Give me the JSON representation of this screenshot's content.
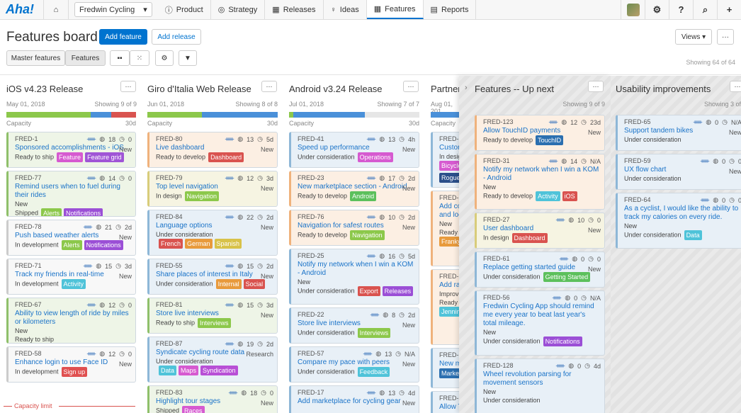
{
  "nav": {
    "logo": "Aha!",
    "workspace": "Fredwin Cycling",
    "tabs": [
      "Product",
      "Strategy",
      "Releases",
      "Ideas",
      "Features",
      "Reports"
    ],
    "active_tab": "Features"
  },
  "header": {
    "title": "Features board",
    "add_feature": "Add feature",
    "add_release": "Add release",
    "views": "Views",
    "filter_left": "Master features",
    "filter_right": "Features",
    "showing": "Showing 64 of 64"
  },
  "columns": [
    {
      "title": "iOS v4.23 Release",
      "date": "May 01, 2018",
      "showing": "Showing 9 of 9",
      "capacity": "Capacity",
      "days": "30d",
      "cards": [
        {
          "id": "FRED-1",
          "score": "18",
          "time": "0",
          "sub": "New",
          "title": "Sponsored accomplishments - iOS",
          "status": "Ready to ship",
          "tags": [
            "Feature",
            "Feature grid"
          ],
          "color": "g"
        },
        {
          "id": "FRED-77",
          "score": "14",
          "time": "0",
          "sub": "",
          "title": "Remind users when to fuel during their rides",
          "status": "New",
          "status2": "Shipped",
          "tags": [
            "Alerts",
            "Notifications"
          ],
          "color": "g"
        },
        {
          "id": "FRED-78",
          "score": "21",
          "time": "2d",
          "sub": "New",
          "title": "Push based weather alerts",
          "status": "In development",
          "tags": [
            "Alerts",
            "Notifications"
          ],
          "color": "w"
        },
        {
          "id": "FRED-71",
          "score": "15",
          "time": "3d",
          "sub": "New",
          "title": "Track my friends in real-time",
          "status": "In development",
          "tags": [
            "Activity"
          ],
          "color": "w"
        },
        {
          "id": "FRED-67",
          "score": "12",
          "time": "0",
          "sub": "",
          "title": "Ability to view length of ride by miles or kilometers",
          "status": "New",
          "status2": "Ready to ship",
          "tags": [
            "Data",
            "Enhanced Metrics"
          ],
          "color": "g"
        },
        {
          "id": "FRED-58",
          "score": "12",
          "time": "0",
          "sub": "New",
          "title": "Enhance login to use Face ID",
          "status": "In development",
          "tags": [
            "Sign up"
          ],
          "color": "w"
        }
      ],
      "limit": "Capacity limit"
    },
    {
      "title": "Giro d'Italia Web Release",
      "date": "Jun 01, 2018",
      "showing": "Showing 8 of 8",
      "capacity": "Capacity",
      "days": "30d",
      "cards": [
        {
          "id": "FRED-80",
          "score": "13",
          "time": "5d",
          "sub": "New",
          "title": "Live dashboard",
          "status": "Ready to develop",
          "tags": [
            "Dashboard"
          ],
          "color": "o"
        },
        {
          "id": "FRED-79",
          "score": "12",
          "time": "3d",
          "sub": "New",
          "title": "Top level navigation",
          "status": "In design",
          "tags": [
            "Navigation"
          ],
          "color": "y"
        },
        {
          "id": "FRED-84",
          "score": "22",
          "time": "2d",
          "sub": "New",
          "title": "Language options",
          "status": "Under consideration",
          "tags": [
            "French",
            "German",
            "Spanish"
          ],
          "color": "b"
        },
        {
          "id": "FRED-55",
          "score": "15",
          "time": "2d",
          "sub": "New",
          "title": "Share places of interest in Italy",
          "status": "Under consideration",
          "tags": [
            "Internal",
            "Social"
          ],
          "color": "b"
        },
        {
          "id": "FRED-81",
          "score": "15",
          "time": "3d",
          "sub": "New",
          "title": "Store live interviews",
          "status": "Ready to ship",
          "tags": [
            "Interviews"
          ],
          "color": "g"
        },
        {
          "id": "FRED-87",
          "score": "19",
          "time": "2d",
          "sub": "Research",
          "title": "Syndicate cycling route data",
          "status": "Under consideration",
          "tags": [
            "Data",
            "Maps",
            "Syndication"
          ],
          "color": "b"
        },
        {
          "id": "FRED-83",
          "score": "18",
          "time": "0",
          "sub": "New",
          "title": "Highlight tour stages",
          "status": "Shipped",
          "tags": [
            "Races"
          ],
          "color": "g"
        }
      ]
    },
    {
      "title": "Android v3.24 Release",
      "date": "Jul 01, 2018",
      "showing": "Showing 7 of 7",
      "capacity": "Capacity",
      "days": "30d",
      "cards": [
        {
          "id": "FRED-41",
          "score": "13",
          "time": "4h",
          "sub": "New",
          "title": "Speed up performance",
          "status": "Under consideration",
          "tags": [
            "Operations"
          ],
          "color": "b"
        },
        {
          "id": "FRED-23",
          "score": "17",
          "time": "2d",
          "sub": "New",
          "title": "New marketplace section - Android",
          "status": "Ready to develop",
          "tags": [
            "Android"
          ],
          "color": "o"
        },
        {
          "id": "FRED-76",
          "score": "10",
          "time": "2d",
          "sub": "New",
          "title": "Navigation for safest routes",
          "status": "Ready to develop",
          "tags": [
            "Navigation"
          ],
          "color": "o"
        },
        {
          "id": "FRED-25",
          "score": "16",
          "time": "5d",
          "sub": "",
          "title": "Notify my network when I win a KOM - Android",
          "status": "New",
          "status2": "Under consideration",
          "tags": [
            "Export",
            "Releases"
          ],
          "color": "b"
        },
        {
          "id": "FRED-22",
          "score": "8",
          "time": "2d",
          "sub": "New",
          "title": "Store live interviews",
          "status": "Under consideration",
          "tags": [
            "Interviews"
          ],
          "color": "b"
        },
        {
          "id": "FRED-57",
          "score": "13",
          "time": "N/A",
          "sub": "New",
          "title": "Compare my pace with peers",
          "status": "Under consideration",
          "tags": [
            "Feedback"
          ],
          "color": "b"
        },
        {
          "id": "FRED-17",
          "score": "13",
          "time": "4d",
          "sub": "New",
          "title": "Add marketplace for cycling gear",
          "status": "",
          "tags": [],
          "color": "b"
        }
      ]
    },
    {
      "title": "Partner",
      "date": "Aug 01, 201",
      "capacity": "Capacity",
      "cards": [
        {
          "id": "FRED-21",
          "title": "Custom",
          "status": "In design",
          "tags": [
            "Bicycle",
            "Rogue"
          ],
          "color": "b"
        },
        {
          "id": "FRED-20",
          "title": "Add con and loca",
          "status": "New",
          "status2": "Ready to",
          "tags": [
            "Franky"
          ],
          "color": "o"
        },
        {
          "id": "FRED-16",
          "title": "Add ratin",
          "status": "Improve",
          "status2": "Ready to",
          "tags": [
            "Jenning"
          ],
          "color": "o"
        },
        {
          "id": "FRED-15",
          "title": "New ma",
          "status": "",
          "tags": [
            "Marketi"
          ],
          "color": "b"
        },
        {
          "id": "FRED-13",
          "title": "Allow To",
          "status": "Under co",
          "tags": [],
          "color": "b"
        }
      ]
    },
    {
      "title": "Features -- Up next",
      "showing": "Showing 9 of 9",
      "cards": [
        {
          "id": "FRED-123",
          "score": "12",
          "time": "23d",
          "sub": "New",
          "title": "Allow TouchID payments",
          "status": "Ready to develop",
          "tags": [
            "TouchID"
          ],
          "color": "o"
        },
        {
          "id": "FRED-31",
          "score": "14",
          "time": "N/A",
          "sub": "",
          "title": "Notify my network when I win a KOM - Android",
          "status": "New",
          "status2": "Ready to develop",
          "tags": [
            "Activity",
            "iOS"
          ],
          "color": "o"
        },
        {
          "id": "FRED-27",
          "score": "10",
          "time": "0",
          "sub": "New",
          "title": "User dashboard",
          "status": "In design",
          "tags": [
            "Dashboard"
          ],
          "color": "y"
        },
        {
          "id": "FRED-61",
          "score": "0",
          "time": "0",
          "sub": "New",
          "title": "Replace getting started guide",
          "status": "Under consideration",
          "tags": [
            "Getting Started"
          ],
          "color": "b"
        },
        {
          "id": "FRED-56",
          "score": "0",
          "time": "N/A",
          "sub": "",
          "title": "Fredwin Cycling App should remind me every year to beat last year's total mileage.",
          "status": "New",
          "status2": "Under consideration",
          "tags": [
            "Notifications"
          ],
          "color": "b"
        },
        {
          "id": "FRED-128",
          "score": "0",
          "time": "4d",
          "sub": "",
          "title": "Wheel revolution parsing for movement sensors",
          "status": "New",
          "status2": "Under consideration",
          "tags": [],
          "color": "b"
        }
      ]
    },
    {
      "title": "Usability improvements",
      "showing": "Showing 3 of",
      "cards": [
        {
          "id": "FRED-65",
          "score": "0",
          "time": "N/A",
          "sub": "New",
          "title": "Support tandem bikes",
          "status": "Under consideration",
          "tags": [],
          "color": "b"
        },
        {
          "id": "FRED-59",
          "score": "0",
          "time": "0",
          "sub": "New",
          "title": "UX flow chart",
          "status": "Under consideration",
          "tags": [],
          "color": "b"
        },
        {
          "id": "FRED-64",
          "score": "0",
          "time": "0",
          "sub": "",
          "title": "As a cyclist, I would like the ability to track my calories on every ride.",
          "status": "New",
          "status2": "Under consideration",
          "tags": [
            "Data"
          ],
          "color": "b"
        }
      ]
    }
  ],
  "tag_colors": {
    "Feature": "#d65ad0",
    "Feature grid": "#a055d6",
    "Alerts": "#8cc84b",
    "Notifications": "#9b4fd6",
    "Activity": "#4fc3d9",
    "Data": "#4fc3d9",
    "Enhanced Metrics": "#e89a3c",
    "Sign up": "#e05050",
    "Dashboard": "#d9534f",
    "Navigation": "#8cc84b",
    "French": "#d9534f",
    "German": "#e89a3c",
    "Spanish": "#d8c24a",
    "Internal": "#e89a3c",
    "Social": "#d9534f",
    "Interviews": "#8cc84b",
    "Maps": "#d65ad0",
    "Syndication": "#b84fd6",
    "Races": "#d65ad0",
    "Operations": "#d65ad0",
    "Android": "#5cc05c",
    "Export": "#d9534f",
    "Releases": "#9b4fd6",
    "Feedback": "#4fc3d9",
    "Bicycle": "#d65ad0",
    "Rogue": "#2b4f8a",
    "Franky": "#e89a3c",
    "Jenning": "#4fc3d9",
    "Marketi": "#2b6fb0",
    "TouchID": "#2b6fb0",
    "iOS": "#d9534f",
    "Getting Started": "#5cc05c"
  }
}
